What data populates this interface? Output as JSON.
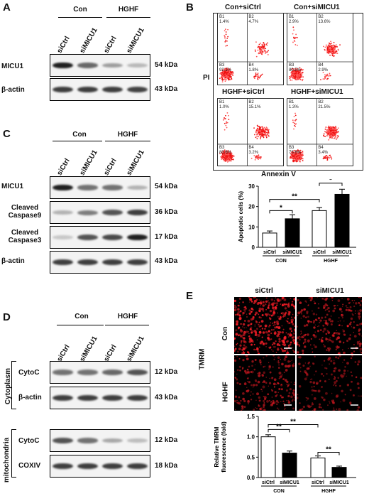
{
  "panelA": {
    "label": "A",
    "groups": [
      "Con",
      "HGHF"
    ],
    "lanes": [
      "siCtrl",
      "siMICU1",
      "siCtrl",
      "siMICU1"
    ],
    "rows": [
      {
        "name": "MICU1",
        "kda": "54 kDa",
        "intensity": [
          0.95,
          0.6,
          0.35,
          0.22
        ]
      },
      {
        "name": "β-actin",
        "kda": "43 kDa",
        "intensity": [
          0.8,
          0.8,
          0.8,
          0.78
        ]
      }
    ]
  },
  "panelB": {
    "label": "B",
    "y_axis": "PI",
    "x_axis": "Annexin V",
    "plots": [
      {
        "title": "Con+siCtrl",
        "q": [
          "B1\n1.4%",
          "B2\n4.7%",
          "B3\n92.1%",
          "B4\n1.8%"
        ]
      },
      {
        "title": "Con+siMICU1",
        "q": [
          "B1\n2.9%",
          "B2\n13.6%",
          "B3\n80.5%",
          "B4\n2.9%"
        ]
      },
      {
        "title": "HGHF+siCtrl",
        "q": [
          "B1\n1.0%",
          "B2\n15.1%",
          "B3\n80.6%",
          "B4\n3.2%"
        ]
      },
      {
        "title": "HGHF+siMICU1",
        "q": [
          "B1\n1.3%",
          "B2\n21.5%",
          "B3\n73.6%",
          "B4\n3.4%"
        ]
      }
    ]
  },
  "chartB": {
    "ylabel": "Apoptotic cells (%)",
    "yticks": [
      "0",
      "10",
      "20",
      "30"
    ],
    "ticklabels": [
      "siCtrl",
      "siMICU1",
      "siCtrl",
      "siMICU1"
    ],
    "groups": [
      "CON",
      "HGHF"
    ],
    "sig": [
      "*",
      "**",
      "*"
    ]
  },
  "panelC": {
    "label": "C",
    "groups": [
      "Con",
      "HGHF"
    ],
    "lanes": [
      "siCtrl",
      "siMICU1",
      "siCtrl",
      "siMICU1"
    ],
    "rows": [
      {
        "name": "MICU1",
        "kda": "54 kDa",
        "intensity": [
          0.95,
          0.55,
          0.55,
          0.25
        ]
      },
      {
        "name": "Cleaved\nCaspase9",
        "kda": "36 kDa",
        "intensity": [
          0.25,
          0.5,
          0.7,
          0.8
        ]
      },
      {
        "name": "Cleaved\nCaspase3",
        "kda": "17 kDa",
        "intensity": [
          0.15,
          0.7,
          0.75,
          0.95
        ]
      },
      {
        "name": "β-actin",
        "kda": "43 kDa",
        "intensity": [
          0.8,
          0.8,
          0.8,
          0.8
        ]
      }
    ]
  },
  "panelD": {
    "label": "D",
    "groups": [
      "Con",
      "HGHF"
    ],
    "lanes": [
      "siCtrl",
      "siMICU1",
      "siCtrl",
      "siMICU1"
    ],
    "sections": [
      "Cytoplasm",
      "mitochondria"
    ],
    "rows": [
      {
        "name": "CytoC",
        "kda": "12 kDa",
        "intensity": [
          0.55,
          0.55,
          0.6,
          0.7
        ]
      },
      {
        "name": "β-actin",
        "kda": "43 kDa",
        "intensity": [
          0.8,
          0.8,
          0.8,
          0.8
        ]
      },
      {
        "name": "CytoC",
        "kda": "12 kDa",
        "intensity": [
          0.7,
          0.55,
          0.3,
          0.2
        ]
      },
      {
        "name": "COXIV",
        "kda": "18 kDa",
        "intensity": [
          0.8,
          0.8,
          0.8,
          0.8
        ]
      }
    ]
  },
  "panelE": {
    "label": "E",
    "cols": [
      "siCtrl",
      "siMICU1"
    ],
    "rows": [
      "Con",
      "HGHF"
    ],
    "stain": "TMRM"
  },
  "chartE": {
    "ylabel": "Relative TMRM\nfluorescence (fold)",
    "yticks": [
      "0.0",
      "0.5",
      "1.0",
      "1.5"
    ],
    "ticklabels": [
      "siCtrl",
      "siMICU1",
      "siCtrl",
      "siMICU1"
    ],
    "groups": [
      "CON",
      "HGHF"
    ],
    "sig": [
      "**",
      "**",
      "**"
    ]
  },
  "chart_data": [
    {
      "type": "bar",
      "categories": [
        "siCtrl",
        "siMICU1",
        "siCtrl",
        "siMICU1"
      ],
      "groups": [
        "CON",
        "HGHF"
      ],
      "values": [
        7,
        14,
        18,
        26
      ],
      "errors": [
        1,
        2,
        1.5,
        2.5
      ],
      "colors": [
        "#ffffff",
        "#000000",
        "#ffffff",
        "#000000"
      ],
      "ylabel": "Apoptotic cells (%)",
      "ylim": [
        0,
        30
      ]
    },
    {
      "type": "bar",
      "categories": [
        "siCtrl",
        "siMICU1",
        "siCtrl",
        "siMICU1"
      ],
      "groups": [
        "CON",
        "HGHF"
      ],
      "values": [
        1.0,
        0.6,
        0.48,
        0.25
      ],
      "errors": [
        0.05,
        0.05,
        0.05,
        0.03
      ],
      "colors": [
        "#ffffff",
        "#000000",
        "#ffffff",
        "#000000"
      ],
      "ylabel": "Relative TMRM fluorescence (fold)",
      "ylim": [
        0,
        1.5
      ]
    }
  ]
}
